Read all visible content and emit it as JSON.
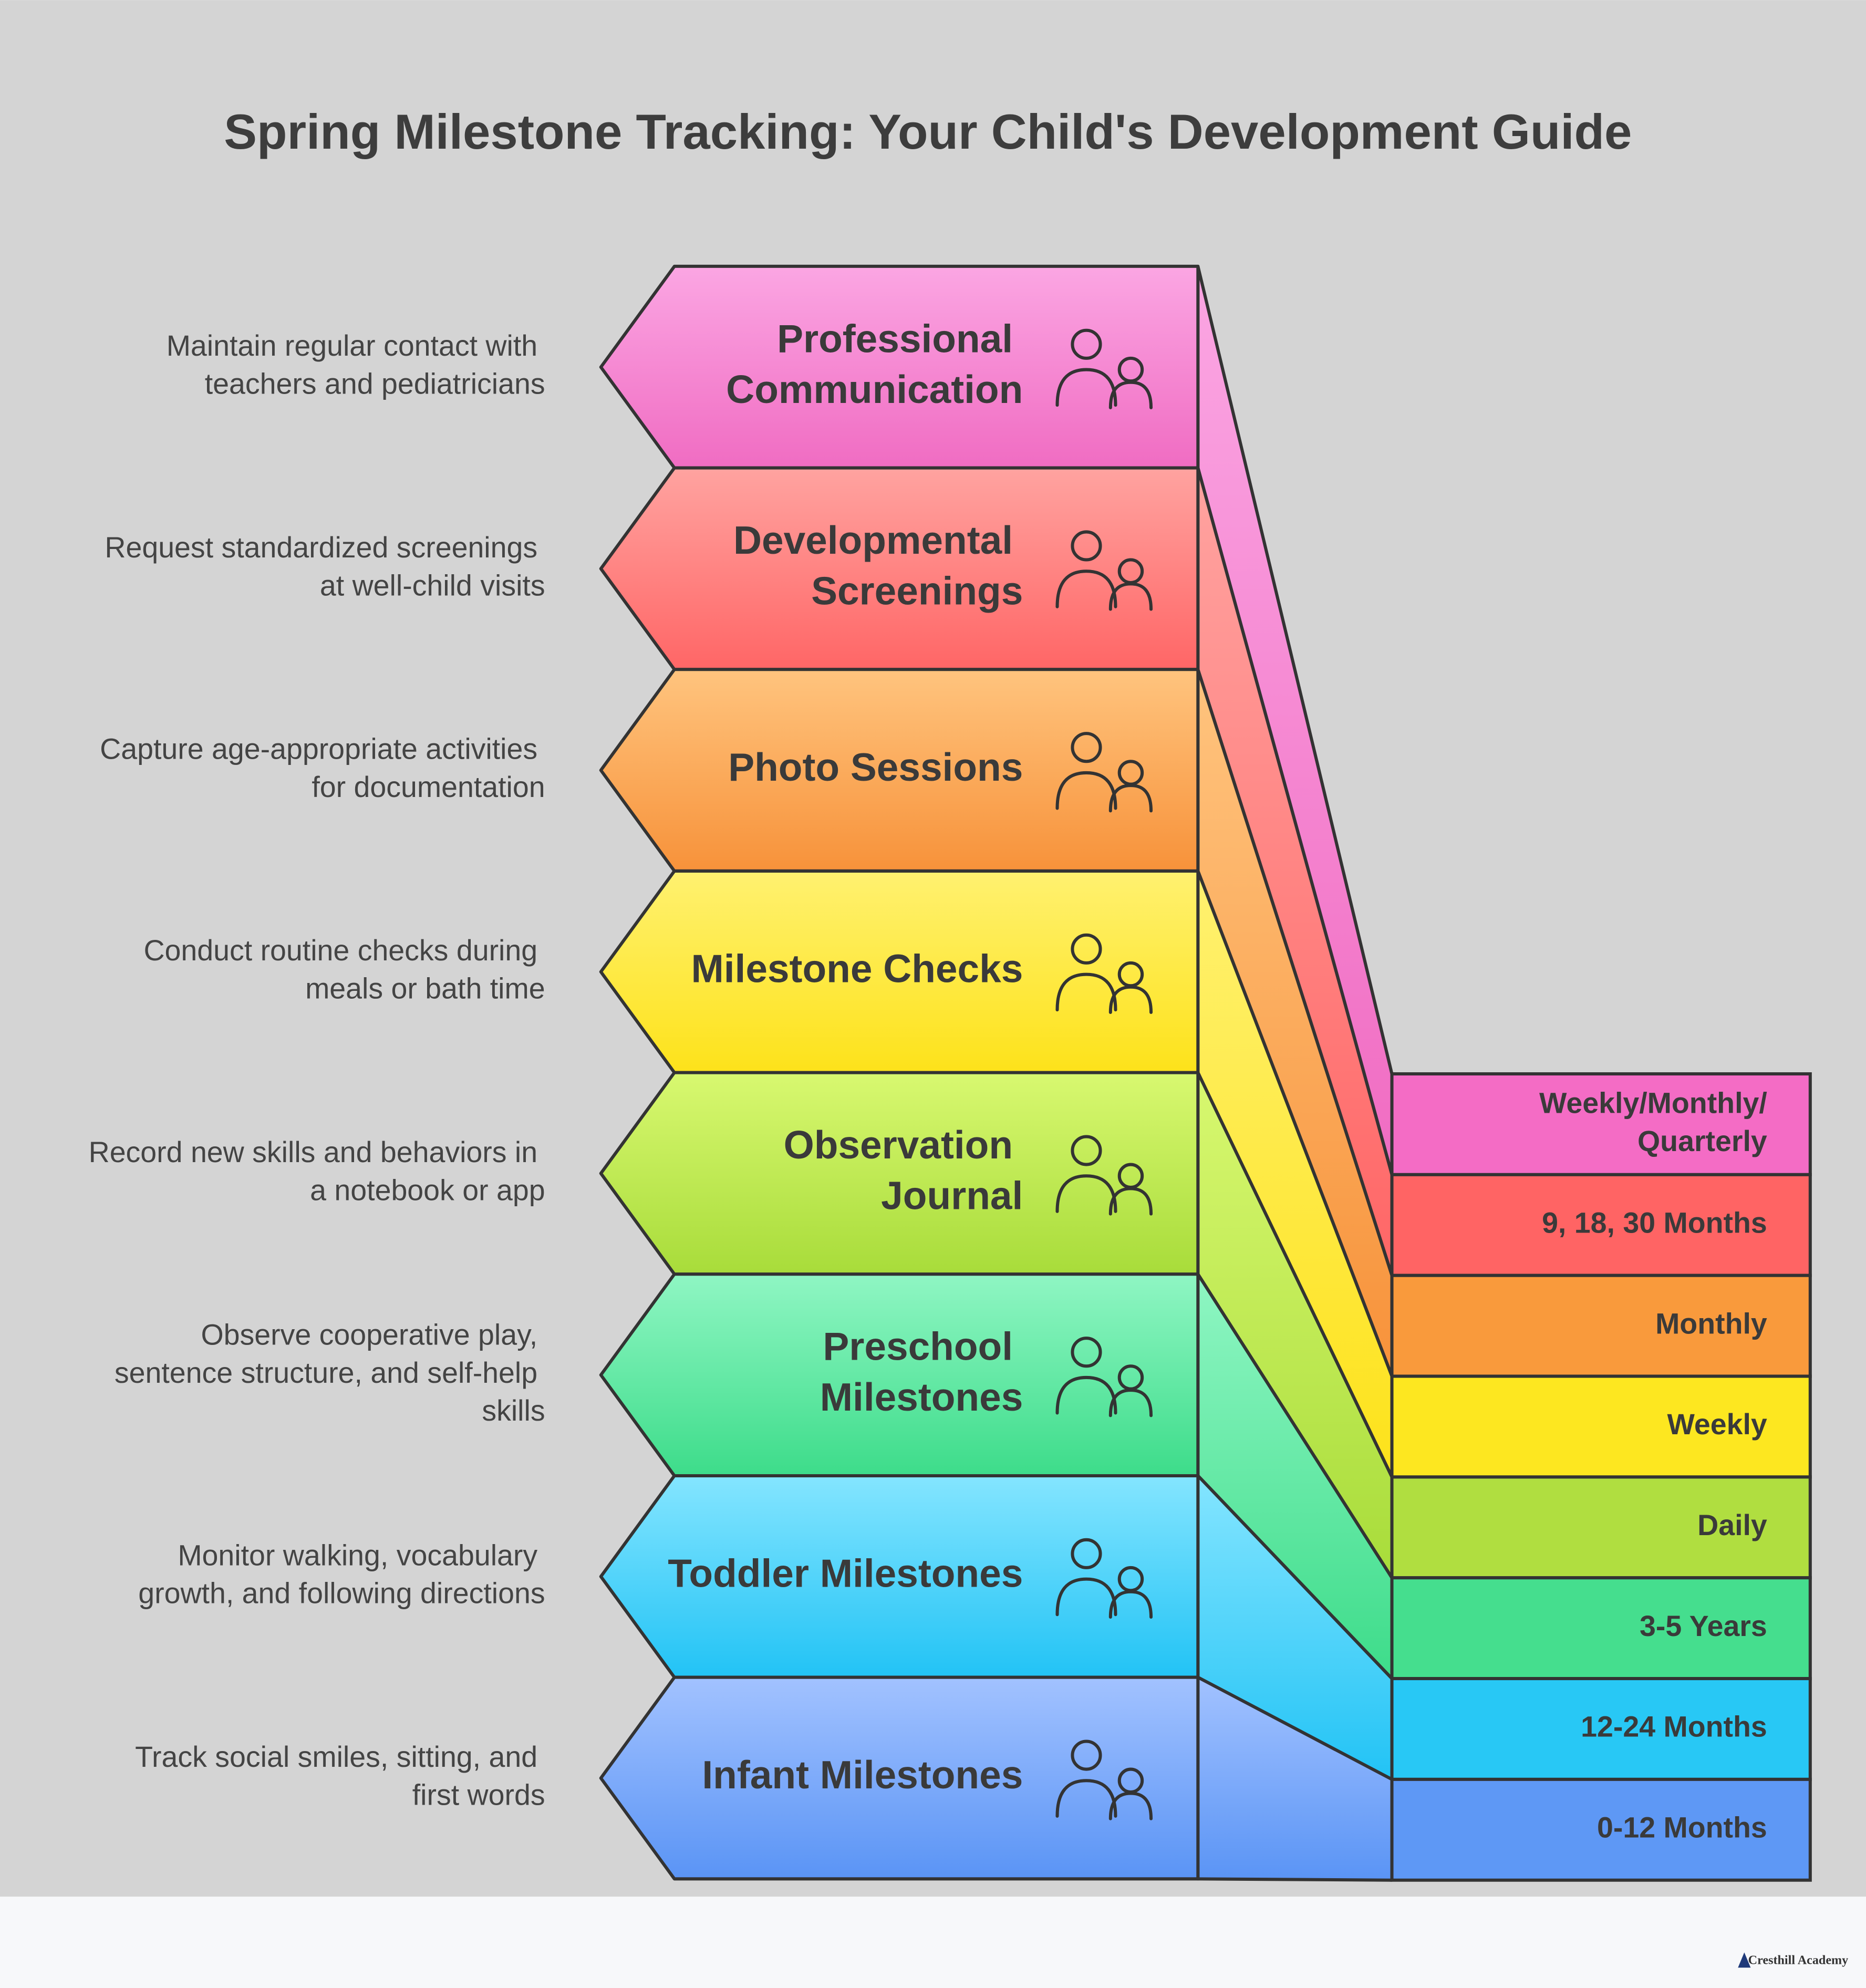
{
  "title": "Spring Milestone Tracking: Your Child's Development Guide",
  "items": [
    {
      "label": [
        "Professional",
        "Communication"
      ],
      "description": [
        "Maintain regular contact with",
        "teachers and pediatricians"
      ],
      "frequency": [
        "Weekly/Monthly/",
        "Quarterly"
      ],
      "colors": [
        "#fba6e3",
        "#f06cc2"
      ],
      "box_color": "#f46cc5"
    },
    {
      "label": [
        "Developmental",
        "Screenings"
      ],
      "description": [
        "Request standardized screenings",
        "at well-child visits"
      ],
      "frequency": [
        "9, 18, 30 Months"
      ],
      "colors": [
        "#ffa3a0",
        "#ff6666"
      ],
      "box_color": "#ff6464"
    },
    {
      "label": [
        "Photo Sessions"
      ],
      "description": [
        "Capture age-appropriate activities",
        "for documentation"
      ],
      "frequency": [
        "Monthly"
      ],
      "colors": [
        "#ffc47e",
        "#f7923a"
      ],
      "box_color": "#f99a3c"
    },
    {
      "label": [
        "Milestone Checks"
      ],
      "description": [
        "Conduct routine checks during",
        "meals or bath time"
      ],
      "frequency": [
        "Weekly"
      ],
      "colors": [
        "#fff170",
        "#fde21a"
      ],
      "box_color": "#fde720"
    },
    {
      "label": [
        "Observation",
        "Journal"
      ],
      "description": [
        "Record new skills and behaviors in",
        "a notebook or app"
      ],
      "frequency": [
        "Daily"
      ],
      "colors": [
        "#d8f870",
        "#a8dc3a"
      ],
      "box_color": "#b0de40"
    },
    {
      "label": [
        "Preschool",
        "Milestones"
      ],
      "description": [
        "Observe cooperative play,",
        "sentence structure, and self-help",
        "skills"
      ],
      "frequency": [
        "3-5 Years"
      ],
      "colors": [
        "#8ff6c3",
        "#3ddc8a"
      ],
      "box_color": "#45de8e"
    },
    {
      "label": [
        "Toddler Milestones"
      ],
      "description": [
        "Monitor walking, vocabulary",
        "growth, and following directions"
      ],
      "frequency": [
        "12-24 Months"
      ],
      "colors": [
        "#84e5ff",
        "#22c3f5"
      ],
      "box_color": "#28c8f5"
    },
    {
      "label": [
        "Infant Milestones"
      ],
      "description": [
        "Track social smiles, sitting, and",
        "first words"
      ],
      "frequency": [
        "0-12 Months"
      ],
      "colors": [
        "#a2c2ff",
        "#5a94f5"
      ],
      "box_color": "#5e98f5"
    }
  ],
  "footer": "Cresthill Academy"
}
